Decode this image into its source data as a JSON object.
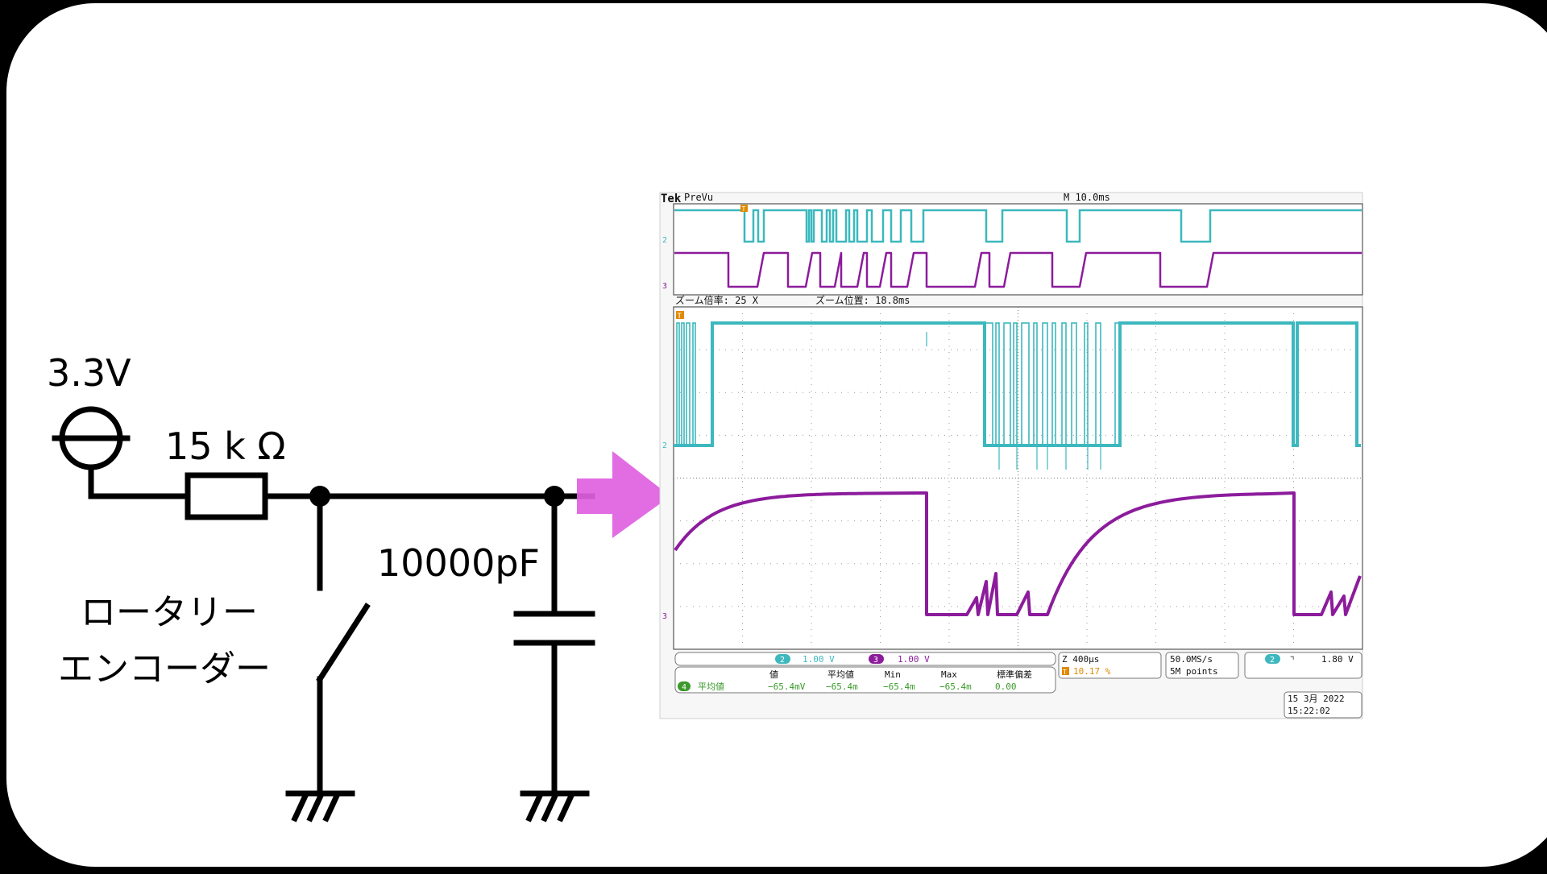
{
  "circuit": {
    "supply_label": "3.3V",
    "resistor_label": "15 k Ω",
    "capacitor_label": "10000pF",
    "switch_label_line1": "ロータリー",
    "switch_label_line2": "エンコーダー"
  },
  "colors": {
    "wire": "#000000",
    "arrow": "#e060e0",
    "ch2": "#3cb8be",
    "ch3": "#8c1c9c",
    "ch4": "#3a9a2a",
    "trigger": "#e08a00"
  },
  "scope": {
    "brand": "Tek",
    "mode": "PreVu",
    "timebase": "M 10.0ms",
    "zoom_factor_label": "ズーム倍率: 25 X",
    "zoom_position_label": "ズーム位置: 18.8ms",
    "trigger_marker": "T",
    "ch2_marker": "2",
    "ch3_marker": "3",
    "ch4_marker": "4",
    "ch2_scale": "1.00 V",
    "ch3_scale": "1.00 V",
    "meas_headers": [
      "値",
      "平均値",
      "Min",
      "Max",
      "標準偏差"
    ],
    "meas_name": "平均値",
    "meas_values": [
      "−65.4mV",
      "−65.4m",
      "−65.4m",
      "−65.4m",
      "0.00"
    ],
    "zoom_time": "Z 400µs",
    "trigger_pos": "10.17 %",
    "sample_rate": "50.0MS/s",
    "record_length": "5M points",
    "trigger_slope_symbol": "⌝",
    "trigger_level": "1.80 V",
    "date": "15 3月  2022",
    "time": "15:22:02"
  }
}
